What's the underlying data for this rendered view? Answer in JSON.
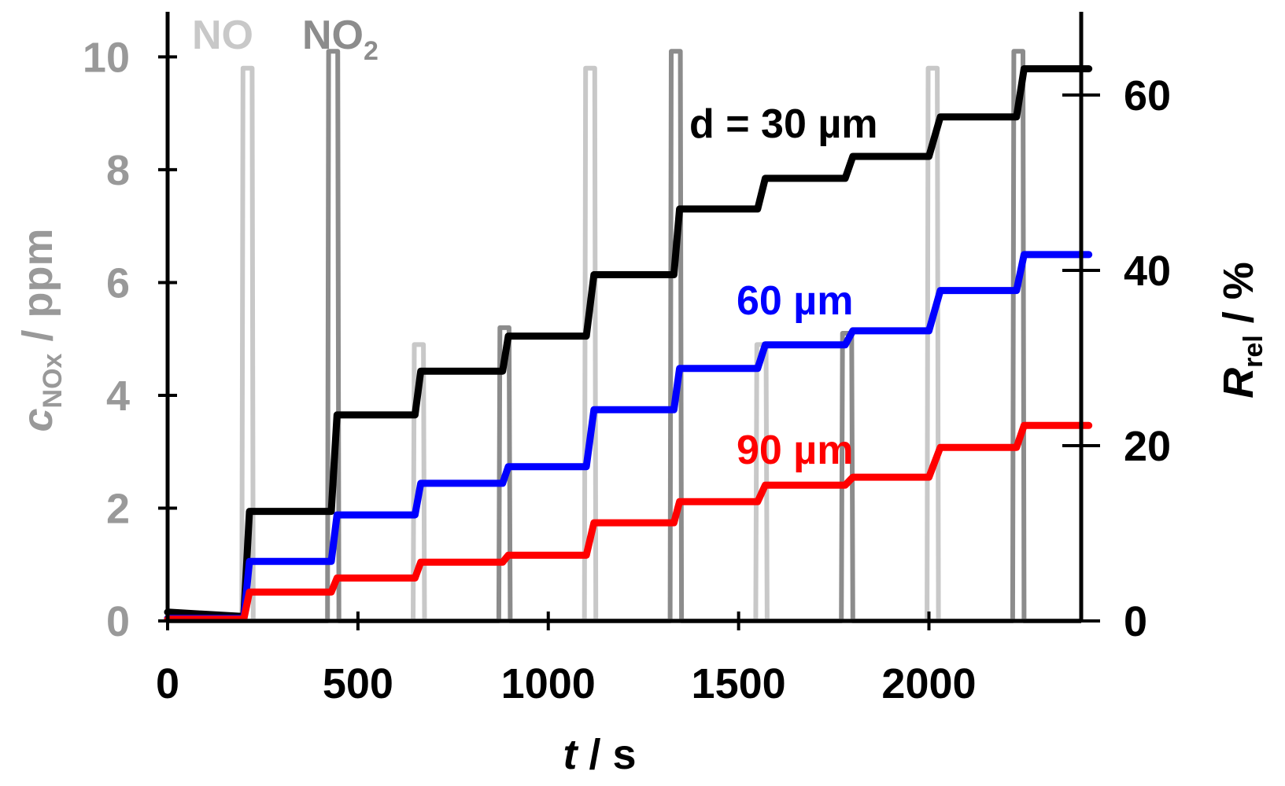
{
  "chart_data": {
    "type": "line",
    "x_axis": {
      "label_italic": "t",
      "label_rest": " / s",
      "range": [
        0,
        2400
      ],
      "ticks": [
        0,
        500,
        1000,
        1500,
        2000
      ],
      "tick_labels": [
        "0",
        "500",
        "1000",
        "1500",
        "2000"
      ]
    },
    "left_axis": {
      "label_symbol": "c",
      "label_sub": "NOx",
      "label_rest": " / ppm",
      "range": [
        0,
        10.8
      ],
      "ticks": [
        0,
        2,
        4,
        6,
        8,
        10
      ],
      "tick_labels": [
        "0",
        "2",
        "4",
        "6",
        "8",
        "10"
      ],
      "color": "#999999"
    },
    "right_axis": {
      "label_symbol": "R",
      "label_sub": "rel",
      "label_rest": "  / %",
      "range": [
        0,
        69.5
      ],
      "ticks": [
        0,
        20,
        40,
        60
      ],
      "tick_labels": [
        "0",
        "20",
        "40",
        "60"
      ],
      "color": "#000000"
    },
    "gas_series": [
      {
        "name": "NO",
        "label": "NO",
        "color": "#c8c8c8",
        "pulses": [
          {
            "start": 195,
            "end": 225,
            "peak": 9.8
          },
          {
            "start": 645,
            "end": 675,
            "peak": 4.9
          },
          {
            "start": 1095,
            "end": 1125,
            "peak": 9.8
          },
          {
            "start": 1545,
            "end": 1575,
            "peak": 4.9
          },
          {
            "start": 1995,
            "end": 2025,
            "peak": 9.8
          }
        ]
      },
      {
        "name": "NO2",
        "label_main": "NO",
        "label_sub": "2",
        "color": "#8c8c8c",
        "pulses": [
          {
            "start": 420,
            "end": 450,
            "peak": 10.1
          },
          {
            "start": 870,
            "end": 900,
            "peak": 5.2
          },
          {
            "start": 1320,
            "end": 1350,
            "peak": 10.1
          },
          {
            "start": 1770,
            "end": 1800,
            "peak": 5.1
          },
          {
            "start": 2220,
            "end": 2250,
            "peak": 10.1
          }
        ]
      }
    ],
    "response_series": [
      {
        "name": "d = 30 µm",
        "label": "d = 30 µm",
        "color": "#000000",
        "x": [
          0,
          200,
          215,
          430,
          445,
          650,
          665,
          880,
          895,
          1100,
          1120,
          1330,
          1345,
          1550,
          1570,
          1780,
          1800,
          2000,
          2030,
          2230,
          2250,
          2420
        ],
        "y": [
          1,
          0.5,
          12.5,
          12.5,
          23.5,
          23.5,
          28.5,
          28.5,
          32.5,
          32.5,
          39.5,
          39.5,
          47,
          47,
          50.5,
          50.5,
          53,
          53,
          57.5,
          57.5,
          63,
          63
        ]
      },
      {
        "name": "60 µm",
        "label": "60 µm",
        "color": "#0000ff",
        "x": [
          0,
          200,
          215,
          430,
          445,
          650,
          665,
          880,
          895,
          1100,
          1120,
          1330,
          1345,
          1550,
          1570,
          1780,
          1800,
          2000,
          2030,
          2230,
          2250,
          2420
        ],
        "y": [
          0.3,
          0.3,
          6.8,
          6.8,
          12.1,
          12.1,
          15.7,
          15.7,
          17.6,
          17.6,
          24.1,
          24.1,
          28.8,
          28.8,
          31.5,
          31.5,
          33.1,
          33.1,
          37.7,
          37.7,
          41.8,
          41.8
        ]
      },
      {
        "name": "90 µm",
        "label": "90 µm",
        "color": "#ff0000",
        "x": [
          0,
          200,
          215,
          430,
          445,
          650,
          665,
          880,
          895,
          1100,
          1120,
          1330,
          1345,
          1550,
          1570,
          1780,
          1800,
          2000,
          2030,
          2230,
          2250,
          2420
        ],
        "y": [
          0.2,
          0.2,
          3.3,
          3.3,
          4.9,
          4.9,
          6.7,
          6.7,
          7.5,
          7.5,
          11.2,
          11.2,
          13.6,
          13.6,
          15.5,
          15.5,
          16.4,
          16.4,
          19.8,
          19.8,
          22.3,
          22.3
        ]
      }
    ]
  }
}
